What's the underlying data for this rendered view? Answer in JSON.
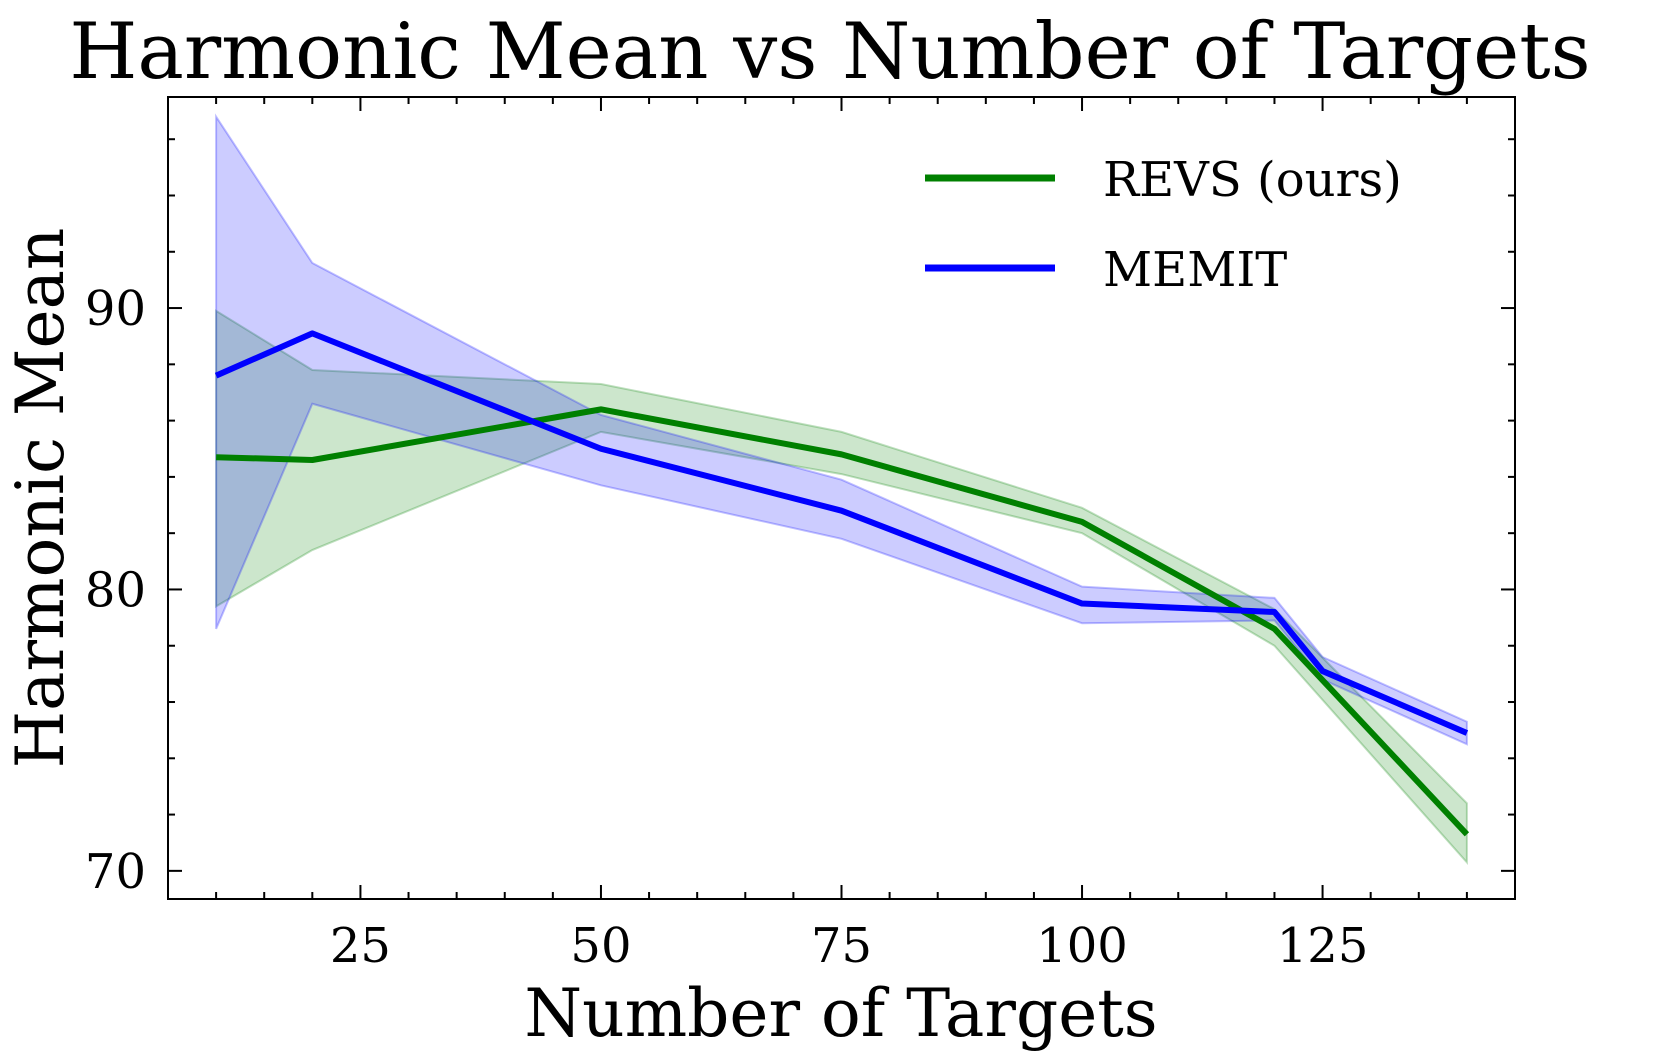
{
  "chart_data": {
    "type": "line",
    "title": "Harmonic Mean vs Number of Targets",
    "xlabel": "Number of Targets",
    "ylabel": "Harmonic Mean",
    "xlim": [
      5,
      145
    ],
    "ylim": [
      69,
      97.5
    ],
    "xticks": [
      25,
      50,
      75,
      100,
      125
    ],
    "yticks": [
      70,
      80,
      90
    ],
    "grid": false,
    "legend_position": "top-right",
    "series": [
      {
        "name": "REVS (ours)",
        "color": "#008000",
        "fill_color": "#008000",
        "x": [
          10,
          20,
          50,
          75,
          100,
          120,
          140
        ],
        "y": [
          84.7,
          84.6,
          86.4,
          84.8,
          82.4,
          78.6,
          71.3
        ],
        "lower": [
          79.4,
          81.4,
          85.6,
          84.1,
          82.0,
          78.0,
          70.3
        ],
        "upper": [
          89.9,
          87.8,
          87.3,
          85.6,
          82.9,
          79.3,
          72.4
        ]
      },
      {
        "name": "MEMIT",
        "color": "#0000ff",
        "fill_color": "#0000ff",
        "x": [
          10,
          20,
          50,
          75,
          100,
          120,
          125,
          140
        ],
        "y": [
          87.6,
          89.1,
          85.0,
          82.8,
          79.5,
          79.2,
          77.1,
          74.9
        ],
        "lower": [
          78.6,
          86.6,
          83.7,
          81.8,
          78.8,
          78.9,
          76.8,
          74.5
        ],
        "upper": [
          96.8,
          91.6,
          86.2,
          83.9,
          80.1,
          79.7,
          77.6,
          75.3
        ]
      }
    ]
  }
}
